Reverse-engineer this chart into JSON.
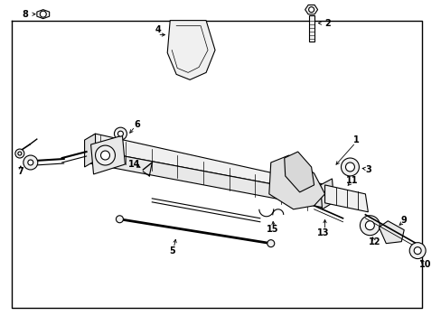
{
  "bg_color": "#ffffff",
  "line_color": "#000000",
  "fig_width": 4.89,
  "fig_height": 3.6,
  "dpi": 100,
  "parallelogram": {
    "x": [
      0.13,
      0.97,
      0.87,
      0.03
    ],
    "y": [
      0.93,
      0.93,
      0.07,
      0.07
    ]
  }
}
